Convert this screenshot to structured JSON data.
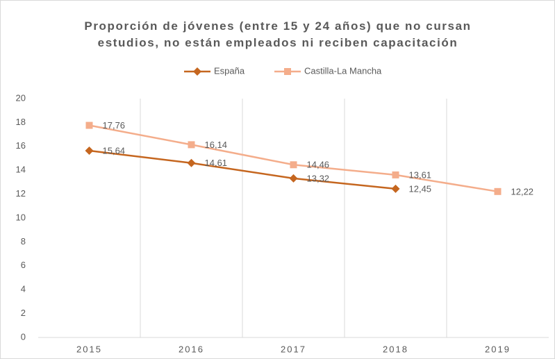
{
  "chart_data": {
    "type": "line",
    "title": "Proporción de jóvenes (entre 15 y 24 años) que no cursan estudios, no están empleados ni reciben capacitación",
    "categories": [
      "2015",
      "2016",
      "2017",
      "2018",
      "2019"
    ],
    "series": [
      {
        "name": "España",
        "color": "#c5661f",
        "marker": "diamond",
        "values": [
          15.64,
          14.61,
          13.32,
          12.45,
          null
        ],
        "value_labels": [
          "15,64",
          "14,61",
          "13,32",
          "12,45",
          null
        ]
      },
      {
        "name": "Castilla-La Mancha",
        "color": "#f4ad8b",
        "marker": "square",
        "values": [
          17.76,
          16.14,
          14.46,
          13.61,
          12.22
        ],
        "value_labels": [
          "17,76",
          "16,14",
          "14,46",
          "13,61",
          "12,22"
        ]
      }
    ],
    "ylim": [
      0,
      20
    ],
    "yticks": [
      0,
      2,
      4,
      6,
      8,
      10,
      12,
      14,
      16,
      18,
      20
    ],
    "legend": "top"
  }
}
